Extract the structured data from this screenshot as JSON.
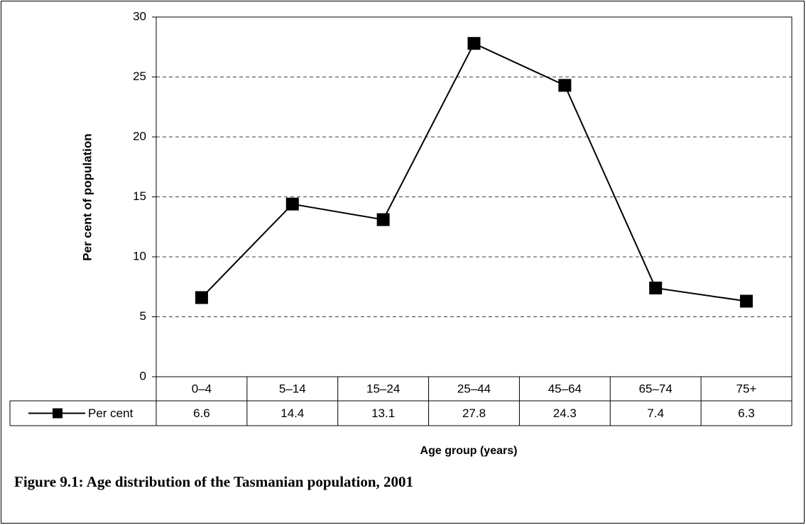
{
  "chart_data": {
    "type": "line",
    "title": "Figure 9.1: Age distribution of the Tasmanian population, 2001",
    "x_label": "Age group (years)",
    "y_label": "Per cent of population",
    "categories": [
      "0–4",
      "5–14",
      "15–24",
      "25–44",
      "45–64",
      "65–74",
      "75+"
    ],
    "series": [
      {
        "name": "Per cent",
        "color": "#000000",
        "values": [
          6.6,
          14.4,
          13.1,
          27.8,
          24.3,
          7.4,
          6.3
        ]
      }
    ],
    "ylim": [
      0,
      30
    ],
    "yticks": [
      0,
      5,
      10,
      15,
      20,
      25,
      30
    ],
    "grid": true,
    "data_table": true
  }
}
